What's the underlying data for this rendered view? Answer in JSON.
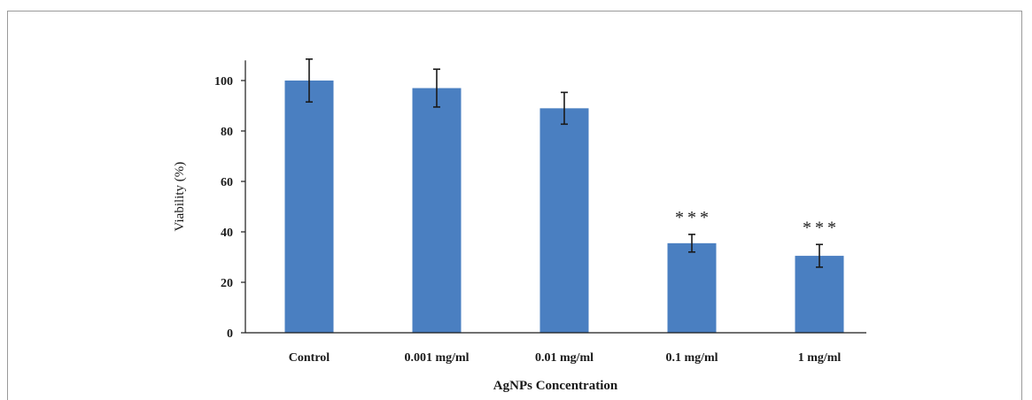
{
  "chart_data": {
    "type": "bar",
    "title": "",
    "xlabel": "AgNPs Concentration",
    "ylabel": "Viability  (%)",
    "ylim": [
      0,
      108
    ],
    "yticks": [
      0,
      20,
      40,
      60,
      80,
      100
    ],
    "categories": [
      "Control",
      "0.001 mg/ml",
      "0.01 mg/ml",
      "0.1 mg/ml",
      "1 mg/ml"
    ],
    "values": [
      100,
      97,
      89,
      35.5,
      30.5
    ],
    "errors": [
      8.5,
      7.5,
      6.3,
      3.5,
      4.5
    ],
    "annotations": [
      "",
      "",
      "",
      "***",
      "***"
    ],
    "bar_color": "#4a7fc1",
    "error_bar_color": "#1a1a1a",
    "grid": false,
    "legend": "none"
  }
}
